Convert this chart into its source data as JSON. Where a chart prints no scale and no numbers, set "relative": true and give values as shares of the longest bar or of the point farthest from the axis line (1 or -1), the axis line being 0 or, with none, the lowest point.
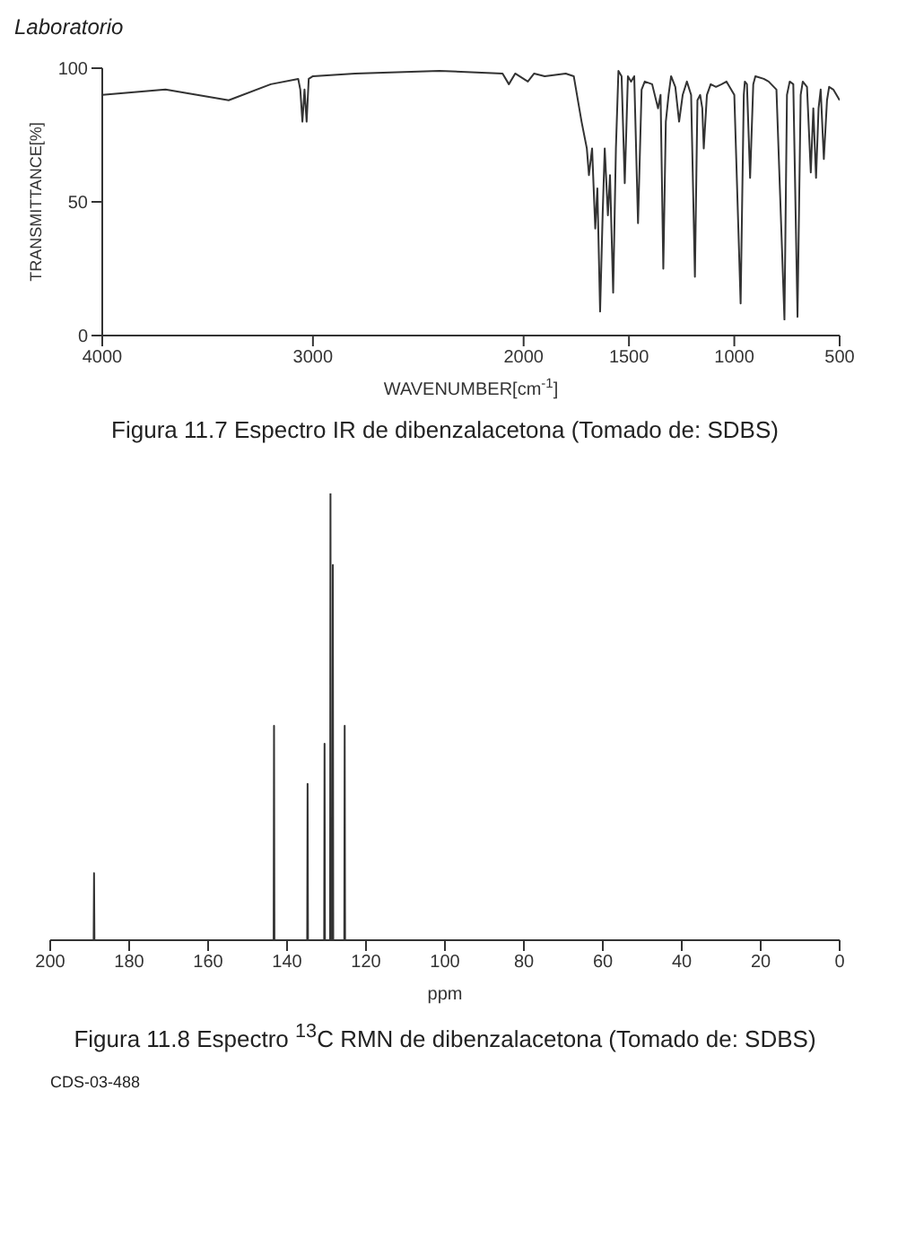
{
  "chart_data": [
    {
      "type": "line",
      "title": "Figura 11.7 Espectro IR de dibenzalacetona (Tomado de: SDBS)",
      "xlabel": "WAVENUMBER[cm$^{-1}$]",
      "ylabel": "TRANSMITTANCE[%]",
      "annotations": [
        "Laboratorio"
      ],
      "xlim": [
        4000,
        500
      ],
      "xticks": [
        4000,
        3000,
        2000,
        1500,
        1000,
        500
      ],
      "ylim": [
        0,
        100
      ],
      "yticks": [
        0,
        50,
        100
      ],
      "series": [
        {
          "color": "#333333",
          "x": [
            4000,
            3700,
            3400,
            3200,
            3070,
            3060,
            3050,
            3040,
            3030,
            3020,
            3000,
            2800,
            2400,
            2100,
            2070,
            2040,
            1980,
            1950,
            1900,
            1800,
            1762,
            1725,
            1700,
            1690,
            1675,
            1660,
            1650,
            1637,
            1625,
            1615,
            1600,
            1590,
            1575,
            1562,
            1550,
            1535,
            1520,
            1505,
            1490,
            1475,
            1457,
            1440,
            1425,
            1390,
            1362,
            1350,
            1337,
            1325,
            1312,
            1300,
            1280,
            1262,
            1245,
            1225,
            1205,
            1187,
            1175,
            1162,
            1152,
            1145,
            1130,
            1112,
            1087,
            1060,
            1037,
            1000,
            970,
            955,
            950,
            940,
            925,
            910,
            900,
            860,
            837,
            800,
            762,
            750,
            737,
            720,
            700,
            685,
            675,
            655,
            637,
            625,
            612,
            600,
            590,
            575,
            560,
            550,
            530,
            500
          ],
          "values": [
            90,
            92,
            88,
            94,
            96,
            92,
            80,
            92,
            80,
            96,
            97,
            98,
            99,
            98,
            94,
            98,
            95,
            98,
            97,
            98,
            97,
            80,
            70,
            60,
            70,
            40,
            55,
            9,
            45,
            70,
            45,
            60,
            16,
            70,
            99,
            97,
            57,
            97,
            95,
            97,
            42,
            92,
            95,
            94,
            85,
            90,
            25,
            80,
            90,
            97,
            93,
            80,
            90,
            95,
            90,
            22,
            88,
            90,
            85,
            70,
            90,
            94,
            93,
            94,
            95,
            90,
            12,
            90,
            95,
            94,
            59,
            94,
            97,
            96,
            95,
            92,
            6,
            90,
            95,
            94,
            7,
            90,
            95,
            93,
            61,
            85,
            59,
            85,
            92,
            66,
            88,
            93,
            92,
            88
          ]
        }
      ]
    },
    {
      "type": "line",
      "title": "Figura 11.8 Espectro $^{13}$C RMN de dibenzalacetona (Tomado de: SDBS)",
      "xlabel": "ppm",
      "annotations": [
        "CDS-03-488"
      ],
      "relative": true,
      "xlim": [
        200,
        0
      ],
      "xticks": [
        200,
        180,
        160,
        140,
        120,
        100,
        80,
        60,
        40,
        20,
        0
      ],
      "series": [
        {
          "color": "#333333",
          "x": [
            200,
            189.0,
            188.9,
            188.8,
            143.4,
            143.3,
            143.2,
            134.9,
            134.8,
            134.7,
            130.6,
            130.5,
            130.4,
            129.1,
            129.0,
            128.9,
            128.5,
            128.4,
            128.3,
            125.5,
            125.4,
            125.3,
            0
          ],
          "values": [
            0,
            0,
            0.15,
            0,
            0,
            0.48,
            0,
            0,
            0.35,
            0,
            0,
            0.44,
            0,
            0,
            1,
            0,
            0,
            0.84,
            0,
            0,
            0.48,
            0,
            0
          ]
        }
      ]
    }
  ]
}
